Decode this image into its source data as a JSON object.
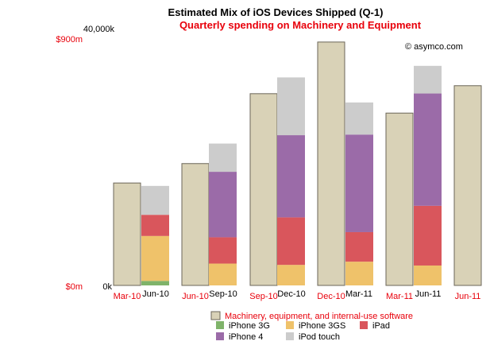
{
  "chart_data": {
    "type": "bar",
    "title": "Estimated Mix of iOS Devices Shipped (Q-1)",
    "subtitle": "Quarterly spending on Machinery and Equipment",
    "credit": "© asymco.com",
    "left_axis": {
      "top_label": "$900m",
      "bottom_label": "$0m",
      "range": [
        0,
        900
      ],
      "color": "#e8000b"
    },
    "right_axis": {
      "top_label": "40,000k",
      "bottom_label": "0k",
      "range": [
        0,
        40000
      ]
    },
    "spending_series": {
      "name": "Machinery, equipment, and internal-use software",
      "color": "#d9d2b7",
      "points": [
        {
          "label": "Mar-10",
          "value": 359
        },
        {
          "label": "Jun-10",
          "value": 427
        },
        {
          "label": "Sep-10",
          "value": 672
        },
        {
          "label": "Dec-10",
          "value": 853
        },
        {
          "label": "Mar-11",
          "value": 604
        },
        {
          "label": "Jun-11",
          "value": 700
        }
      ]
    },
    "device_series": [
      {
        "name": "iPhone 3G",
        "color": "#7fb36a"
      },
      {
        "name": "iPhone 3GS",
        "color": "#efc26a"
      },
      {
        "name": "iPad",
        "color": "#d9565c"
      },
      {
        "name": "iPhone 4",
        "color": "#9b6ba8"
      },
      {
        "name": "iPod touch",
        "color": "#cccccc"
      }
    ],
    "device_points": [
      {
        "label": "Jun-10",
        "values": {
          "iPhone 3G": 700,
          "iPhone 3GS": 7000,
          "iPad": 3300,
          "iPhone 4": 0,
          "iPod touch": 4500
        }
      },
      {
        "label": "Sep-10",
        "values": {
          "iPhone 3G": 0,
          "iPhone 3GS": 3400,
          "iPad": 4100,
          "iPhone 4": 10200,
          "iPod touch": 4400
        }
      },
      {
        "label": "Dec-10",
        "values": {
          "iPhone 3G": 0,
          "iPhone 3GS": 3200,
          "iPad": 7400,
          "iPhone 4": 12800,
          "iPod touch": 9000
        }
      },
      {
        "label": "Mar-11",
        "values": {
          "iPhone 3G": 0,
          "iPhone 3GS": 3700,
          "iPad": 4600,
          "iPhone 4": 15200,
          "iPod touch": 5000
        }
      },
      {
        "label": "Jun-11",
        "values": {
          "iPhone 3G": 0,
          "iPhone 3GS": 3100,
          "iPad": 9300,
          "iPhone 4": 17500,
          "iPod touch": 4300
        }
      }
    ],
    "legend": {
      "placement": "bottom"
    },
    "grid": false
  }
}
